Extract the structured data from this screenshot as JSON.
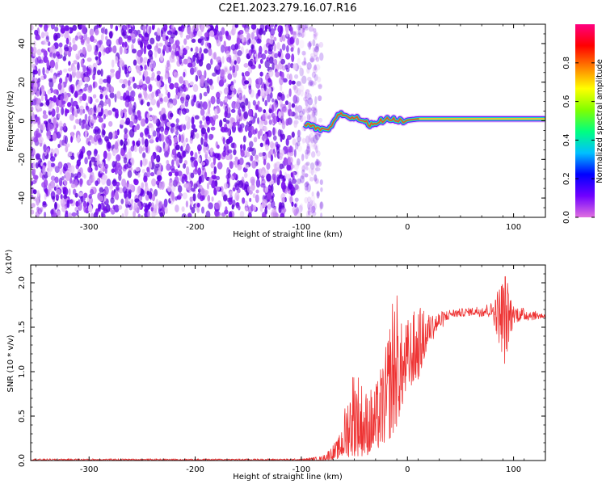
{
  "chart_data": [
    {
      "type": "heatmap",
      "title": "C2E1.2023.279.16.07.R16",
      "xlabel": "Height of straight line (km)",
      "ylabel": "Frequency (Hz)",
      "xlim": [
        -355,
        130
      ],
      "ylim": [
        -50,
        50
      ],
      "xticks": [
        -300,
        -200,
        -100,
        0,
        100
      ],
      "yticks": [
        -40,
        -20,
        0,
        20,
        40
      ],
      "colorbar": {
        "label": "Normalized spectral amplitude",
        "range": [
          0.0,
          1.0
        ],
        "ticks": [
          "0.0",
          "0.2",
          "0.4",
          "0.6",
          "0.8"
        ],
        "colormap": [
          "#e070e0",
          "#7000ff",
          "#0000ff",
          "#00c0ff",
          "#00ff80",
          "#80ff00",
          "#ffff00",
          "#ff8000",
          "#ff0000",
          "#ff0080"
        ]
      },
      "noise_region": {
        "x": [
          -355,
          -90
        ],
        "y": [
          -50,
          50
        ]
      },
      "signal_track": [
        {
          "x": -97,
          "y": -2
        },
        {
          "x": -90,
          "y": -3
        },
        {
          "x": -80,
          "y": -5
        },
        {
          "x": -72,
          "y": -4
        },
        {
          "x": -65,
          "y": 4
        },
        {
          "x": -55,
          "y": 2
        },
        {
          "x": -45,
          "y": 1
        },
        {
          "x": -35,
          "y": -2
        },
        {
          "x": -25,
          "y": 0
        },
        {
          "x": -15,
          "y": 1
        },
        {
          "x": -5,
          "y": 0
        },
        {
          "x": 10,
          "y": 1
        },
        {
          "x": 40,
          "y": 1
        },
        {
          "x": 80,
          "y": 1
        },
        {
          "x": 130,
          "y": 1
        }
      ]
    },
    {
      "type": "line",
      "xlabel": "Height of straight line (km)",
      "ylabel": "SNR (10 * v/v)",
      "yscale_label": "(x10⁴)",
      "xlim": [
        -355,
        130
      ],
      "ylim": [
        0.0,
        2.2
      ],
      "xticks": [
        -300,
        -200,
        -100,
        0,
        100
      ],
      "yticks": [
        "0.0",
        "0.5",
        "1.0",
        "1.5",
        "2.0"
      ],
      "series_color": "#ee3333",
      "envelope": [
        {
          "x": -355,
          "low": 0.0,
          "high": 0.02
        },
        {
          "x": -100,
          "low": 0.0,
          "high": 0.02
        },
        {
          "x": -80,
          "low": 0.0,
          "high": 0.05
        },
        {
          "x": -65,
          "low": 0.02,
          "high": 0.25
        },
        {
          "x": -50,
          "low": 0.05,
          "high": 1.15
        },
        {
          "x": -40,
          "low": 0.05,
          "high": 0.8
        },
        {
          "x": -30,
          "low": 0.1,
          "high": 0.85
        },
        {
          "x": -20,
          "low": 0.2,
          "high": 1.3
        },
        {
          "x": -12,
          "low": 0.3,
          "high": 2.1
        },
        {
          "x": -5,
          "low": 0.6,
          "high": 1.5
        },
        {
          "x": 0,
          "low": 0.8,
          "high": 1.6
        },
        {
          "x": 10,
          "low": 0.9,
          "high": 1.75
        },
        {
          "x": 20,
          "low": 1.3,
          "high": 1.65
        },
        {
          "x": 40,
          "low": 1.6,
          "high": 1.7
        },
        {
          "x": 60,
          "low": 1.63,
          "high": 1.72
        },
        {
          "x": 80,
          "low": 1.6,
          "high": 1.78
        },
        {
          "x": 92,
          "low": 1.05,
          "high": 2.15
        },
        {
          "x": 100,
          "low": 1.55,
          "high": 1.75
        },
        {
          "x": 130,
          "low": 1.6,
          "high": 1.65
        }
      ]
    }
  ]
}
